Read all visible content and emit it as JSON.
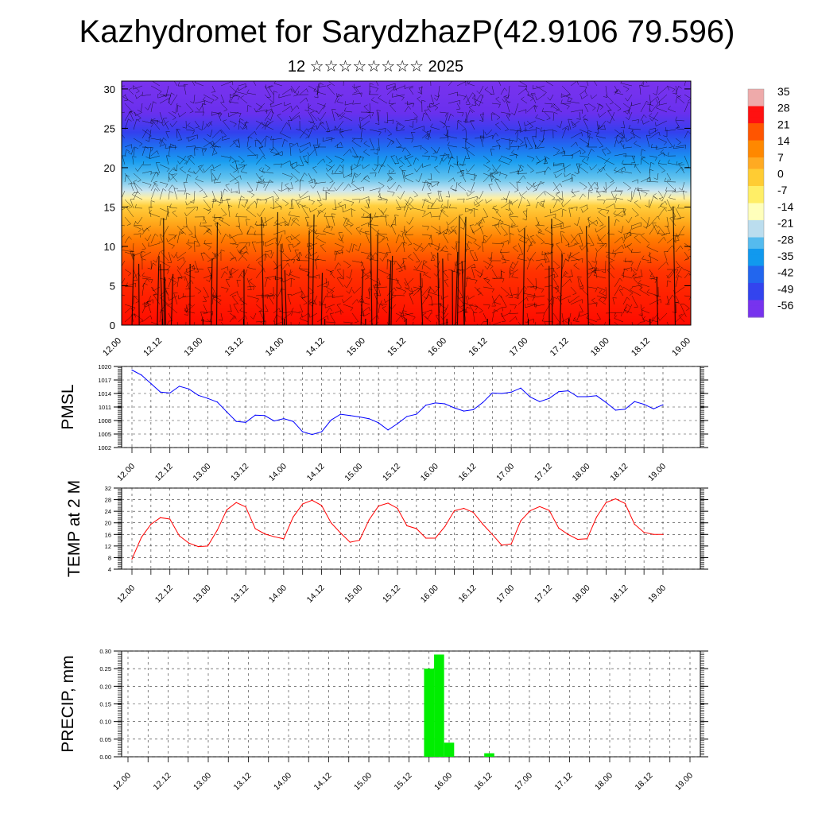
{
  "header": {
    "title": "Kazhydromet for SarydzhazP(42.9106 79.596)",
    "subtitle": "12 ☆☆☆☆☆☆☆☆ 2025"
  },
  "chart_data": [
    {
      "type": "heatmap",
      "name": "temperature-wind-cross-section",
      "x_tick_labels": [
        "12.00",
        "12.12",
        "13.00",
        "13.12",
        "14.00",
        "14.12",
        "15.00",
        "15.12",
        "16.00",
        "16.12",
        "17.00",
        "17.12",
        "18.00",
        "18.12",
        "19.00"
      ],
      "y_ticks": [
        0,
        5,
        10,
        15,
        20,
        25,
        30
      ],
      "ylim": [
        0,
        31
      ],
      "colorbar": {
        "labels": [
          "35",
          "28",
          "21",
          "14",
          "7",
          "0",
          "-7",
          "-14",
          "-21",
          "-28",
          "-35",
          "-42",
          "-49",
          "-56"
        ],
        "colors": [
          "#eeaaaa",
          "#ff1111",
          "#ff5500",
          "#ff8800",
          "#ffaa22",
          "#ffcc33",
          "#ffee66",
          "#ffffbb",
          "#bbddee",
          "#55bbee",
          "#1199ee",
          "#2266ee",
          "#3344ee",
          "#7733ee"
        ]
      },
      "overlay": "wind barbs"
    },
    {
      "type": "line",
      "name": "PMSL",
      "ylabel": "PMSL",
      "ylim": [
        1002,
        1020
      ],
      "y_ticks": [
        1002,
        1005,
        1008,
        1011,
        1014,
        1017,
        1020
      ],
      "x_tick_labels": [
        "12.00",
        "12.12",
        "13.00",
        "13.12",
        "14.00",
        "14.12",
        "15.00",
        "15.12",
        "16.00",
        "16.12",
        "17.00",
        "17.12",
        "18.00",
        "18.12",
        "19.00"
      ],
      "x_hours": [
        0,
        3,
        6,
        9,
        12,
        15,
        18,
        21,
        24,
        27,
        30,
        33,
        36,
        39,
        42,
        45,
        48,
        51,
        54,
        57,
        60,
        63,
        66,
        69,
        72,
        75,
        78,
        81,
        84,
        87,
        90,
        93,
        96,
        99,
        102,
        105,
        108,
        111,
        114,
        117,
        120,
        123,
        126,
        129,
        132,
        135,
        138,
        141,
        144,
        147,
        150,
        153,
        156,
        159,
        162,
        165,
        168
      ],
      "series": [
        {
          "color": "#0000ff",
          "values": [
            1019.2,
            1018.1,
            1016.2,
            1014.3,
            1014.1,
            1015.6,
            1015.0,
            1013.6,
            1012.9,
            1012.1,
            1009.9,
            1007.8,
            1007.6,
            1009.2,
            1009.1,
            1007.9,
            1008.4,
            1007.8,
            1005.5,
            1004.9,
            1005.5,
            1008.1,
            1009.4,
            1009.1,
            1008.8,
            1008.4,
            1007.5,
            1005.9,
            1007.3,
            1008.9,
            1009.4,
            1011.4,
            1011.9,
            1011.7,
            1010.8,
            1010.1,
            1010.4,
            1012.0,
            1014.1,
            1014.0,
            1014.3,
            1015.2,
            1013.2,
            1012.2,
            1012.9,
            1014.4,
            1014.6,
            1013.3,
            1013.3,
            1013.5,
            1012.0,
            1010.3,
            1010.5,
            1012.2,
            1011.6,
            1010.6,
            1011.5
          ]
        }
      ]
    },
    {
      "type": "line",
      "name": "TEMP at 2 M",
      "ylabel": "TEMP at 2 M",
      "ylim": [
        4,
        32
      ],
      "y_ticks": [
        4,
        8,
        12,
        16,
        20,
        24,
        28,
        32
      ],
      "x_tick_labels": [
        "12.00",
        "12.12",
        "13.00",
        "13.12",
        "14.00",
        "14.12",
        "15.00",
        "15.12",
        "16.00",
        "16.12",
        "17.00",
        "17.12",
        "18.00",
        "18.12",
        "19.00"
      ],
      "x_hours": [
        0,
        3,
        6,
        9,
        12,
        15,
        18,
        21,
        24,
        27,
        30,
        33,
        36,
        39,
        42,
        45,
        48,
        51,
        54,
        57,
        60,
        63,
        66,
        69,
        72,
        75,
        78,
        81,
        84,
        87,
        90,
        93,
        96,
        99,
        102,
        105,
        108,
        111,
        114,
        117,
        120,
        123,
        126,
        129,
        132,
        135,
        138,
        141,
        144,
        147,
        150,
        153,
        156,
        159,
        162,
        165,
        168
      ],
      "series": [
        {
          "color": "#ff0000",
          "values": [
            7.5,
            15.0,
            19.5,
            21.8,
            21.3,
            15.5,
            13.0,
            11.8,
            12.0,
            17.5,
            24.5,
            27.0,
            25.5,
            18.0,
            16.2,
            15.2,
            14.5,
            22.0,
            26.5,
            27.8,
            26.0,
            20.0,
            16.5,
            13.3,
            14.0,
            21.0,
            25.8,
            26.8,
            25.0,
            19.0,
            18.0,
            14.7,
            14.7,
            18.7,
            24.2,
            25.0,
            23.6,
            19.5,
            16.0,
            12.3,
            12.7,
            20.7,
            24.2,
            25.6,
            24.3,
            18.2,
            16.0,
            14.3,
            14.5,
            22.0,
            27.0,
            28.3,
            26.7,
            19.5,
            16.7,
            16.0,
            16.0
          ]
        }
      ]
    },
    {
      "type": "bar",
      "name": "PRECIP, mm",
      "ylabel": "PRECIP, mm",
      "ylim": [
        0,
        0.3
      ],
      "y_tick_labels": [
        "0.00",
        "0.05",
        "0.10",
        "0.15",
        "0.20",
        "0.25",
        "0.30"
      ],
      "x_tick_labels": [
        "12.00",
        "12.12",
        "13.00",
        "13.12",
        "14.00",
        "14.12",
        "15.00",
        "15.12",
        "16.00",
        "16.12",
        "17.00",
        "17.12",
        "18.00",
        "18.12",
        "19.00"
      ],
      "bar_color": "#00ee00",
      "bars": [
        {
          "hour": 90,
          "value": 0.25
        },
        {
          "hour": 93,
          "value": 0.29
        },
        {
          "hour": 96,
          "value": 0.04
        },
        {
          "hour": 108,
          "value": 0.01
        }
      ]
    }
  ]
}
